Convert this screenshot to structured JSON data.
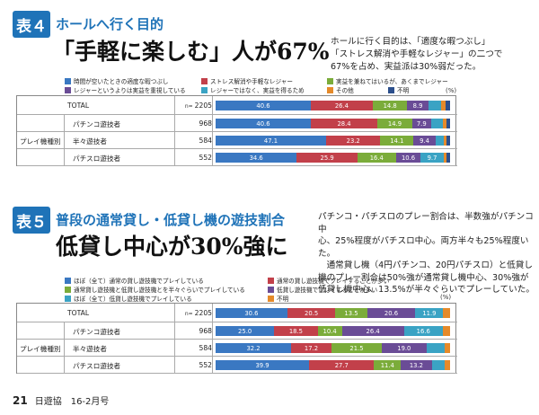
{
  "colors": {
    "blue": "#3a78c2",
    "red": "#c2404a",
    "green": "#7bac3a",
    "purple": "#6a4c96",
    "teal": "#3aa3c4",
    "orange": "#e58a2a",
    "dblue": "#2c4f8c"
  },
  "table4": {
    "badge": "表４",
    "kicker": "ホールへ行く目的",
    "headline": "「手軽に楽しむ」人が67%",
    "desc": [
      "ホールに行く目的は、「適度な暇つぶし」",
      "「ストレス解消や手軽なレジャー」の二つで",
      "67%を占め、実益派は30%弱だった。"
    ],
    "legend": [
      {
        "label": "時間が空いたときの適度な暇つぶし",
        "color": "#3a78c2"
      },
      {
        "label": "ストレス解消や手軽なレジャー",
        "color": "#c2404a"
      },
      {
        "label": "実益を兼ねてはいるが、あくまでレジャー",
        "color": "#7bac3a"
      },
      {
        "label": "レジャーというよりは実益を重視している",
        "color": "#6a4c96"
      },
      {
        "label": "レジャーではなく、実益を得るため",
        "color": "#3aa3c4"
      },
      {
        "label": "その他",
        "color": "#e58a2a"
      },
      {
        "label": "不明",
        "color": "#2c4f8c"
      }
    ],
    "pct_unit": "(%)",
    "group_label": "プレイ機種別",
    "rows": [
      {
        "label": "TOTAL",
        "n_prefix": "n=",
        "n": "2205",
        "values": [
          40.6,
          26.4,
          14.8,
          8.9,
          5.5,
          1.8,
          2.0
        ],
        "show": [
          "40.6",
          "26.4",
          "14.8",
          "8.9",
          "",
          "",
          ""
        ]
      },
      {
        "label": "パチンコ遊技者",
        "n_prefix": "",
        "n": "968",
        "values": [
          40.6,
          28.4,
          14.9,
          7.9,
          5.2,
          1.5,
          1.5
        ],
        "show": [
          "40.6",
          "28.4",
          "14.9",
          "7.9",
          "",
          "",
          ""
        ]
      },
      {
        "label": "半々遊技者",
        "n_prefix": "",
        "n": "584",
        "values": [
          47.1,
          23.2,
          14.1,
          9.4,
          3.4,
          1.4,
          1.4
        ],
        "show": [
          "47.1",
          "23.2",
          "14.1",
          "9.4",
          "",
          "",
          ""
        ]
      },
      {
        "label": "パチスロ遊技者",
        "n_prefix": "",
        "n": "552",
        "values": [
          34.6,
          25.9,
          16.4,
          10.6,
          9.7,
          1.4,
          1.4
        ],
        "show": [
          "34.6",
          "25.9",
          "16.4",
          "10.6",
          "9.7",
          "",
          ""
        ]
      }
    ]
  },
  "table5": {
    "badge": "表５",
    "kicker": "普段の通常貸し・低貸し機の遊技割合",
    "headline": "低貸し中心が30%強に",
    "desc": [
      "パチンコ・パチスロのプレー割合は、半数強がパチンコ中",
      "心、25%程度がパチスロ中心。両方半々も25%程度いた。",
      "　通常貸し機（4円パチンコ、20円パチスロ）と低貸し",
      "機のプレー割合は50%強が通常貸し機中心、30%強が",
      "低貸し機中心、13.5%が半々ぐらいでプレーしていた。"
    ],
    "legend": [
      {
        "label": "ほぼ（全て）通常の貸し遊技機でプレイしている",
        "color": "#3a78c2"
      },
      {
        "label": "通常の貸し遊技機でプレイすることが多い",
        "color": "#c2404a"
      },
      {
        "label": "通常貸し遊技機と低貸し遊技機とを半々ぐらいでプレイしている",
        "color": "#7bac3a"
      },
      {
        "label": "低貸し遊技機でプレイすることが多い",
        "color": "#6a4c96"
      },
      {
        "label": "ほぼ（全て）低貸し遊技機でプレイしている",
        "color": "#3aa3c4"
      },
      {
        "label": "不明",
        "color": "#e58a2a"
      }
    ],
    "pct_unit": "(%)",
    "group_label": "プレイ機種別",
    "rows": [
      {
        "label": "TOTAL",
        "n_prefix": "n=",
        "n": "2205",
        "values": [
          30.6,
          20.5,
          13.5,
          20.6,
          11.9,
          2.9
        ],
        "show": [
          "30.6",
          "20.5",
          "13.5",
          "20.6",
          "11.9",
          ""
        ]
      },
      {
        "label": "パチンコ遊技者",
        "n_prefix": "",
        "n": "968",
        "values": [
          25.0,
          18.5,
          10.4,
          26.4,
          16.6,
          3.1
        ],
        "show": [
          "25.0",
          "18.5",
          "10.4",
          "26.4",
          "16.6",
          ""
        ]
      },
      {
        "label": "半々遊技者",
        "n_prefix": "",
        "n": "584",
        "values": [
          32.2,
          17.2,
          21.5,
          19.0,
          7.8,
          2.3
        ],
        "show": [
          "32.2",
          "17.2",
          "21.5",
          "19.0",
          "",
          ""
        ]
      },
      {
        "label": "パチスロ遊技者",
        "n_prefix": "",
        "n": "552",
        "values": [
          39.9,
          27.7,
          11.4,
          13.2,
          5.4,
          2.4
        ],
        "show": [
          "39.9",
          "27.7",
          "11.4",
          "13.2",
          "",
          ""
        ]
      }
    ]
  },
  "footer": {
    "page": "21",
    "mag": "日遊協　16-2月号"
  }
}
